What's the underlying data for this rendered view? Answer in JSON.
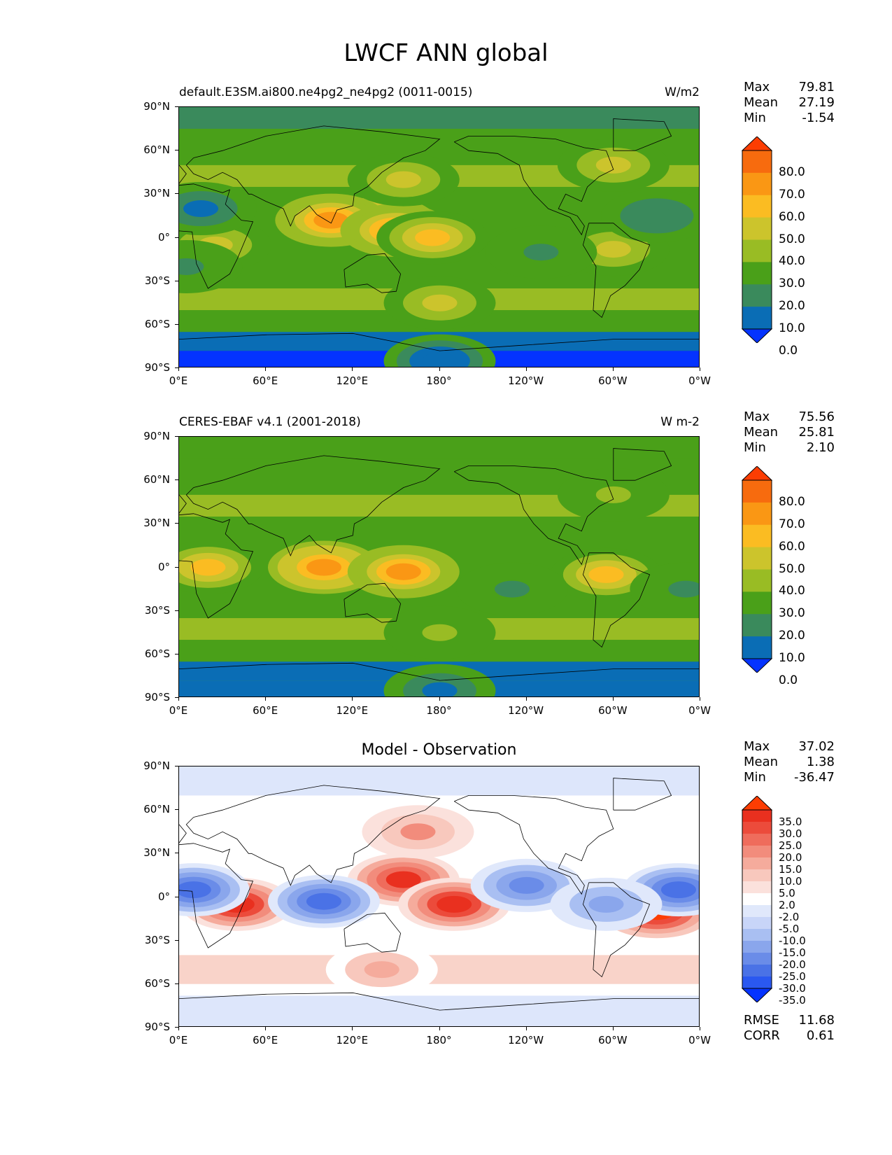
{
  "title": "LWCF ANN global",
  "axes": {
    "lat_labels": [
      "90°N",
      "60°N",
      "30°N",
      "0°",
      "30°S",
      "60°S",
      "90°S"
    ],
    "lon_labels": [
      "0°E",
      "60°E",
      "120°E",
      "180°",
      "120°W",
      "60°W",
      "0°W"
    ]
  },
  "panels": [
    {
      "title_left": "default.E3SM.ai800.ne4pg2_ne4pg2 (0011-0015)",
      "title_right": "W/m2",
      "title_center": "",
      "stats": [
        [
          "Max",
          "79.81"
        ],
        [
          "Mean",
          "27.19"
        ],
        [
          "Min",
          "-1.54"
        ]
      ],
      "colorbar_labels": [
        "80.0",
        "70.0",
        "60.0",
        "50.0",
        "40.0",
        "30.0",
        "20.0",
        "10.0",
        "0.0"
      ]
    },
    {
      "title_left": "CERES-EBAF v4.1 (2001-2018)",
      "title_right": "W m-2",
      "title_center": "",
      "stats": [
        [
          "Max",
          "75.56"
        ],
        [
          "Mean",
          "25.81"
        ],
        [
          "Min",
          "2.10"
        ]
      ],
      "colorbar_labels": [
        "80.0",
        "70.0",
        "60.0",
        "50.0",
        "40.0",
        "30.0",
        "20.0",
        "10.0",
        "0.0"
      ]
    },
    {
      "title_left": "",
      "title_right": "",
      "title_center": "Model - Observation",
      "stats": [
        [
          "Max",
          "37.02"
        ],
        [
          "Mean",
          "1.38"
        ],
        [
          "Min",
          "-36.47"
        ]
      ],
      "extra_stats": [
        [
          "RMSE",
          "11.68"
        ],
        [
          "CORR",
          "0.61"
        ]
      ],
      "colorbar_labels": [
        "35.0",
        "30.0",
        "25.0",
        "20.0",
        "15.0",
        "10.0",
        "5.0",
        "2.0",
        "-2.0",
        "-5.0",
        "-10.0",
        "-15.0",
        "-20.0",
        "-25.0",
        "-30.0",
        "-35.0"
      ]
    }
  ],
  "colors": {
    "seq": [
      "#0433ff",
      "#0a6db5",
      "#3a8a5c",
      "#4aa019",
      "#99bc24",
      "#ccc42c",
      "#fbbc22",
      "#fa9714",
      "#f76b0e",
      "#fc3d03"
    ],
    "div": [
      "#0433ff",
      "#2a58f0",
      "#4a72e6",
      "#6a8ce8",
      "#8aa6ec",
      "#a9bff2",
      "#c8d5f8",
      "#e0e8fb",
      "#ffffff",
      "#fbe1dc",
      "#f8c8bd",
      "#f5ab9c",
      "#f28c7c",
      "#ef6c5c",
      "#ec4b3b",
      "#e9301f",
      "#fc3d03"
    ]
  },
  "chart_data": [
    {
      "type": "heatmap",
      "title": "default.E3SM.ai800.ne4pg2_ne4pg2 (0011-0015)",
      "units": "W/m2",
      "xlabel": "",
      "ylabel": "",
      "xlim": [
        0,
        360
      ],
      "ylim": [
        -90,
        90
      ],
      "levels": [
        0,
        10,
        20,
        30,
        40,
        50,
        60,
        70,
        80
      ],
      "stats": {
        "max": 79.81,
        "mean": 27.19,
        "min": -1.54
      },
      "features": [
        {
          "lon": 140,
          "lat": 10,
          "value": 72
        },
        {
          "lon": 105,
          "lat": 12,
          "value": 60
        },
        {
          "lon": 150,
          "lat": 5,
          "value": 62
        },
        {
          "lon": 175,
          "lat": 0,
          "value": 50
        },
        {
          "lon": 25,
          "lat": -5,
          "value": 48
        },
        {
          "lon": 300,
          "lat": -8,
          "value": 48
        },
        {
          "lon": 250,
          "lat": -10,
          "value": 12
        },
        {
          "lon": 330,
          "lat": 15,
          "value": 10
        },
        {
          "lon": 15,
          "lat": 20,
          "value": 8
        },
        {
          "lon": 5,
          "lat": -20,
          "value": 15
        },
        {
          "lon": 180,
          "lat": -45,
          "value": 40
        },
        {
          "lon": 300,
          "lat": 50,
          "value": 42
        },
        {
          "lon": 155,
          "lat": 40,
          "value": 42
        },
        {
          "lon": 180,
          "lat": -85,
          "value": 0
        }
      ]
    },
    {
      "type": "heatmap",
      "title": "CERES-EBAF v4.1 (2001-2018)",
      "units": "W m-2",
      "xlabel": "",
      "ylabel": "",
      "xlim": [
        0,
        360
      ],
      "ylim": [
        -90,
        90
      ],
      "levels": [
        0,
        10,
        20,
        30,
        40,
        50,
        60,
        70,
        80
      ],
      "stats": {
        "max": 75.56,
        "mean": 25.81,
        "min": 2.1
      },
      "features": [
        {
          "lon": 100,
          "lat": 0,
          "value": 68
        },
        {
          "lon": 155,
          "lat": -3,
          "value": 60
        },
        {
          "lon": 20,
          "lat": 0,
          "value": 56
        },
        {
          "lon": 295,
          "lat": -5,
          "value": 56
        },
        {
          "lon": 230,
          "lat": -15,
          "value": 18
        },
        {
          "lon": 350,
          "lat": -15,
          "value": 18
        },
        {
          "lon": 180,
          "lat": -45,
          "value": 35
        },
        {
          "lon": 300,
          "lat": 50,
          "value": 35
        },
        {
          "lon": 180,
          "lat": -85,
          "value": 8
        }
      ]
    },
    {
      "type": "heatmap",
      "title": "Model - Observation",
      "xlabel": "",
      "ylabel": "",
      "xlim": [
        0,
        360
      ],
      "ylim": [
        -90,
        90
      ],
      "levels": [
        -35,
        -30,
        -25,
        -20,
        -15,
        -10,
        -5,
        -2,
        2,
        5,
        10,
        15,
        20,
        25,
        30,
        35
      ],
      "stats": {
        "max": 37.02,
        "mean": 1.38,
        "min": -36.47,
        "rmse": 11.68,
        "corr": 0.61
      },
      "features": [
        {
          "lon": 155,
          "lat": 12,
          "value": 30
        },
        {
          "lon": 190,
          "lat": -5,
          "value": 33
        },
        {
          "lon": 40,
          "lat": -5,
          "value": 32
        },
        {
          "lon": 330,
          "lat": -10,
          "value": 35
        },
        {
          "lon": 100,
          "lat": -3,
          "value": -30
        },
        {
          "lon": 10,
          "lat": 5,
          "value": -30
        },
        {
          "lon": 240,
          "lat": 8,
          "value": -25
        },
        {
          "lon": 345,
          "lat": 5,
          "value": -28
        },
        {
          "lon": 295,
          "lat": -5,
          "value": -18
        },
        {
          "lon": 165,
          "lat": 45,
          "value": 15
        },
        {
          "lon": 140,
          "lat": -50,
          "value": 12
        }
      ]
    }
  ]
}
